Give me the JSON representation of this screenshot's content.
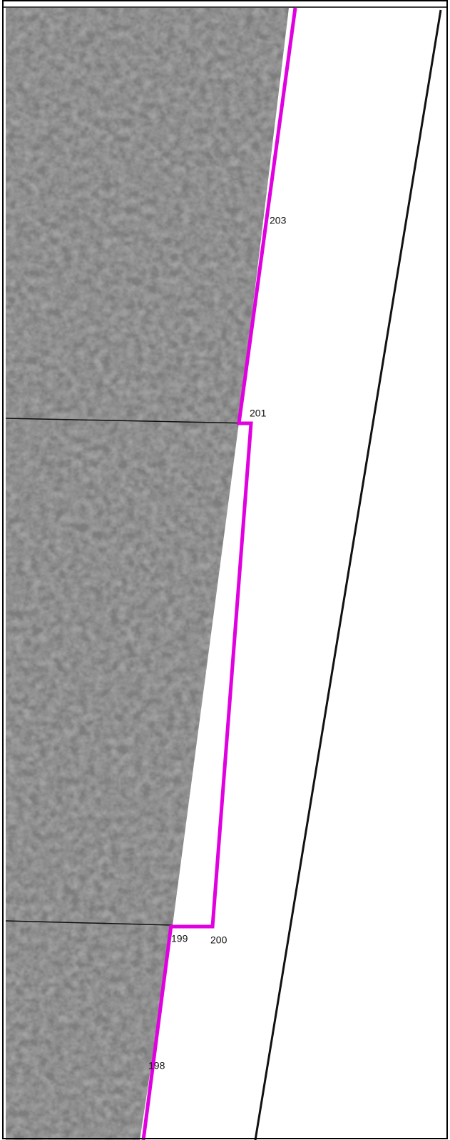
{
  "points": [
    {
      "label": "203"
    },
    {
      "label": "201"
    },
    {
      "label": "199"
    },
    {
      "label": "200"
    },
    {
      "label": "198"
    }
  ]
}
